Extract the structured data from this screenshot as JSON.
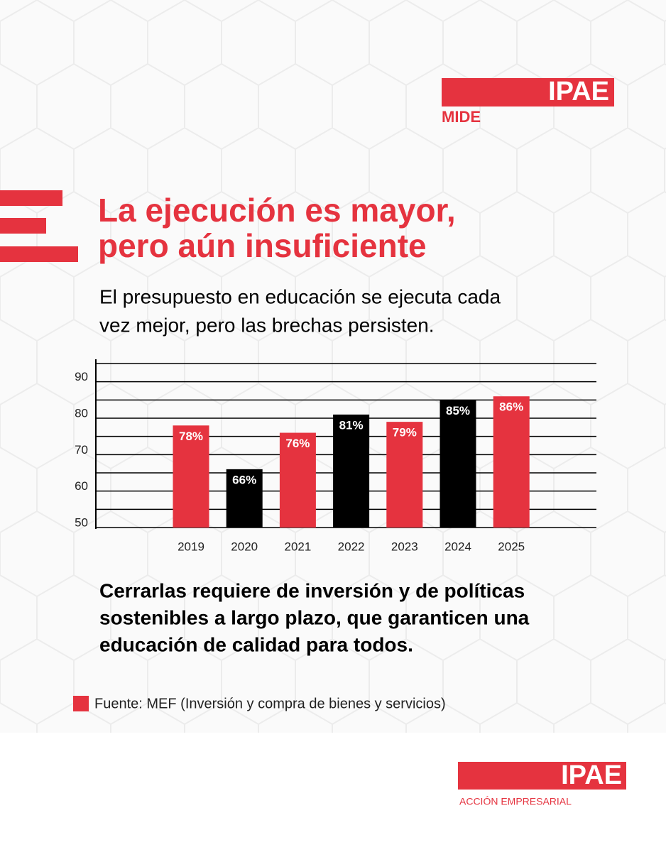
{
  "logo_top": {
    "brand": "IPAE",
    "sub": "MIDE"
  },
  "chart_data": {
    "type": "bar",
    "title": [
      "La ejecución es mayor,",
      "pero aún insuficiente"
    ],
    "subtitle": [
      "El presupuesto en educación se ejecuta cada",
      "vez mejor, pero las brechas persisten."
    ],
    "categories": [
      "2019",
      "2020",
      "2021",
      "2022",
      "2023",
      "2024",
      "2025"
    ],
    "values": [
      78,
      66,
      76,
      81,
      79,
      85,
      86
    ],
    "value_labels": [
      "78%",
      "66%",
      "76%",
      "81%",
      "79%",
      "85%",
      "86%"
    ],
    "colors": [
      "#e5333f",
      "#000000",
      "#e5333f",
      "#000000",
      "#e5333f",
      "#000000",
      "#e5333f"
    ],
    "ylim": [
      50,
      95
    ],
    "yticks": [
      50,
      60,
      70,
      80,
      90
    ],
    "minor_yticks": [
      55,
      65,
      75,
      85,
      95
    ],
    "grid": true
  },
  "body": [
    "Cerrarlas requiere de inversión y de políticas",
    "sostenibles a largo plazo, que garanticen una",
    "educación de calidad para todos."
  ],
  "source": "Fuente: MEF (Inversión y compra de bienes y servicios)",
  "logo_bottom": {
    "brand": "IPAE",
    "sub": "ACCIÓN EMPRESARIAL"
  }
}
